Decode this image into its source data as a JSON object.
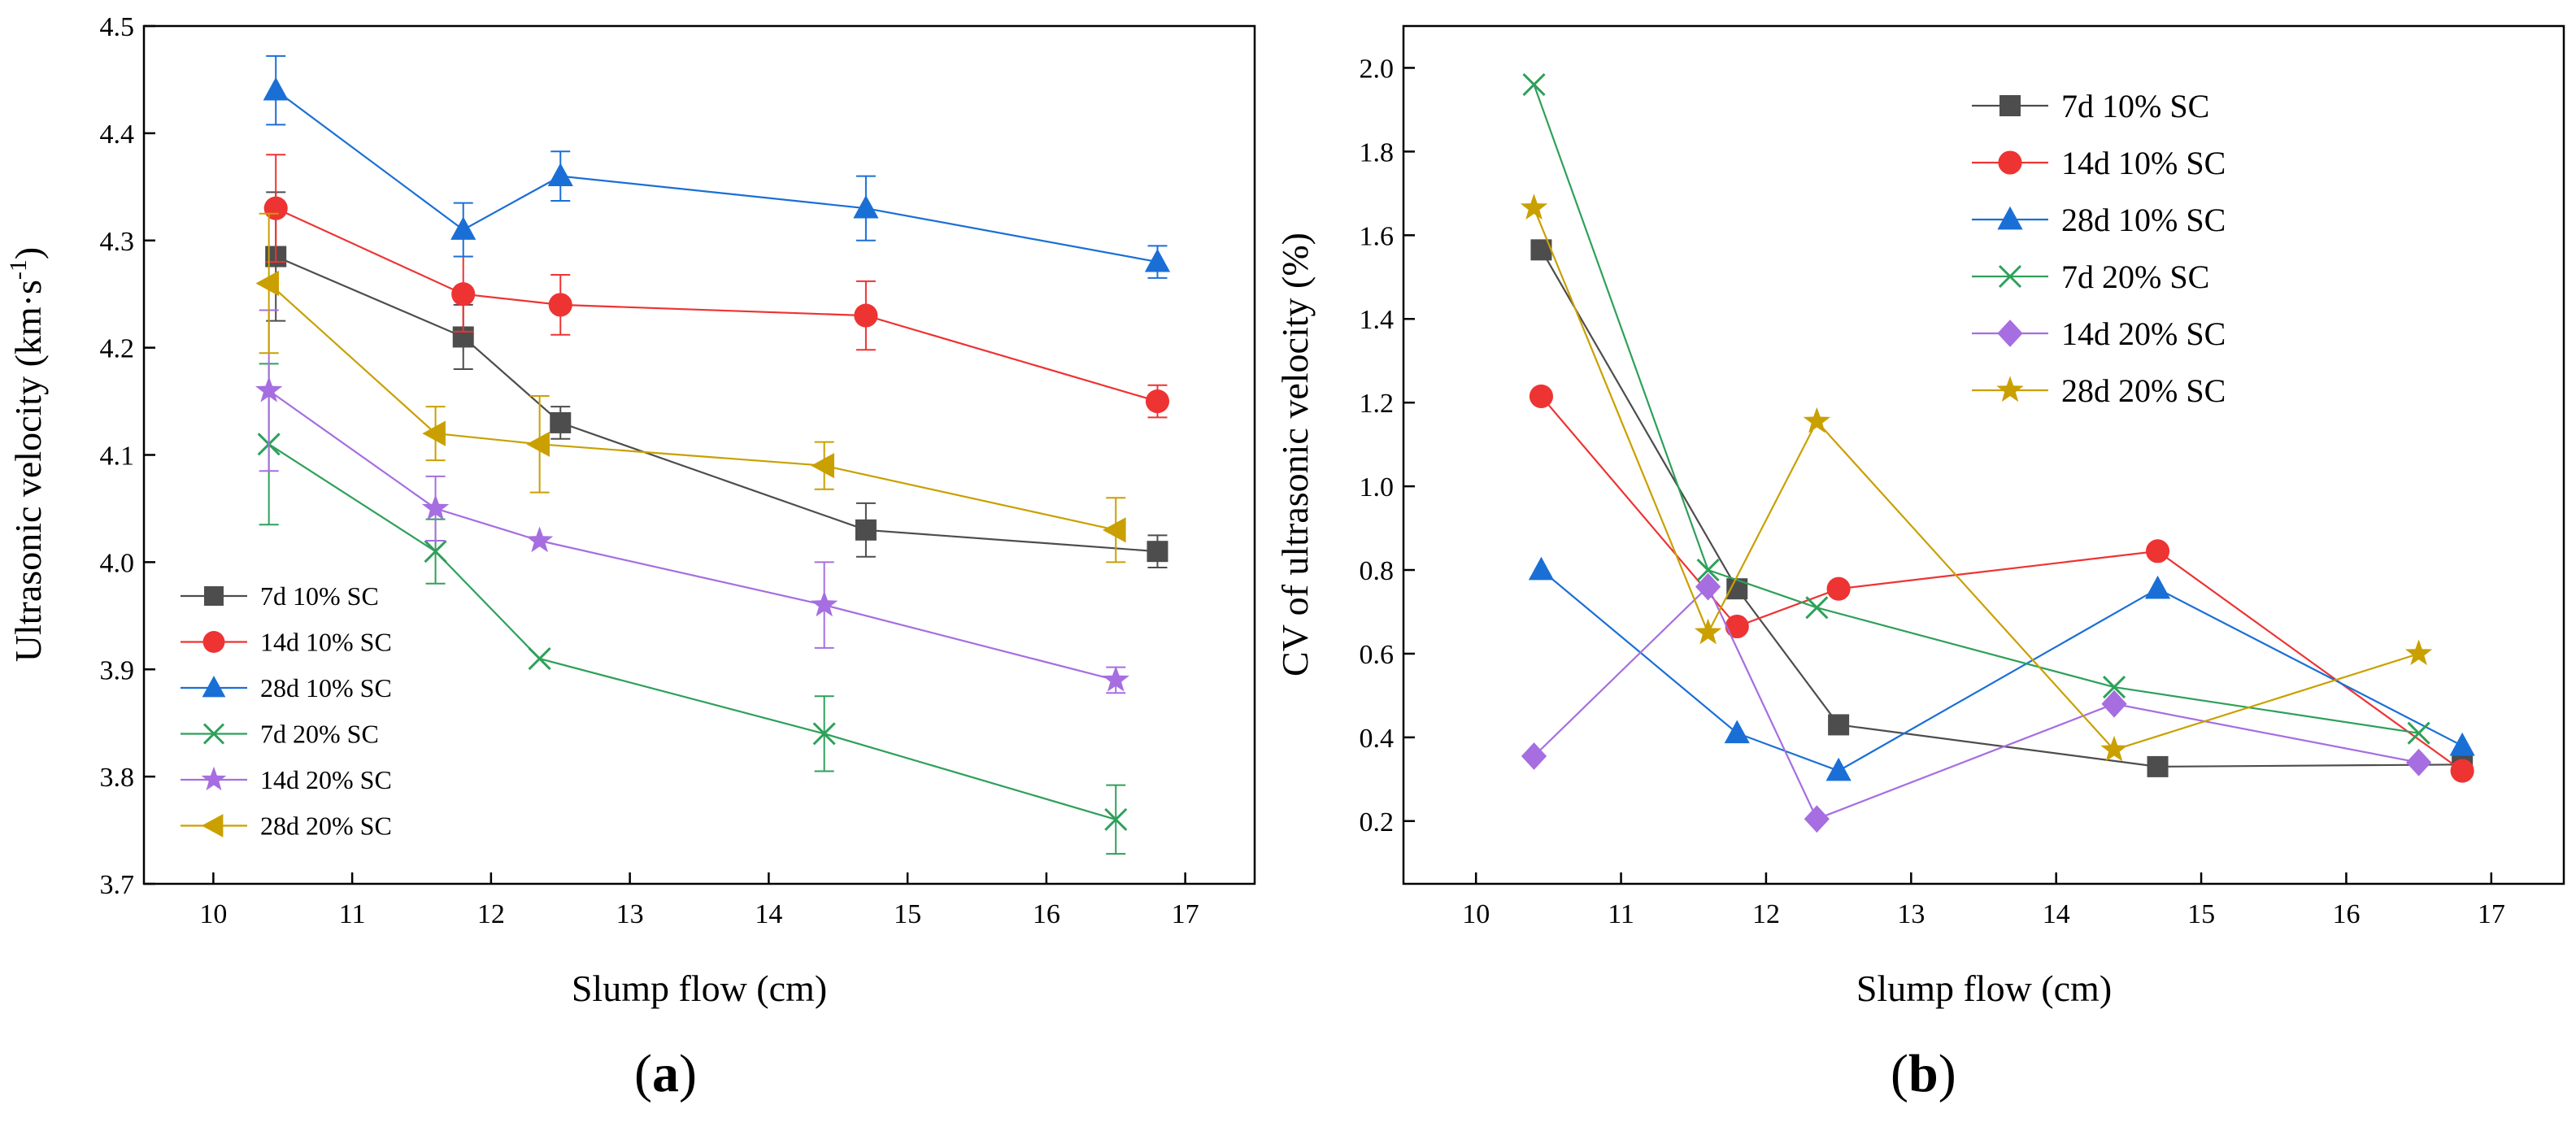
{
  "chart_data": [
    {
      "type": "line",
      "panel_label": "a",
      "xlabel": "Slump flow (cm)",
      "ylabel_main": "Ultrasonic velocity (km·s",
      "ylabel_sup": "-1",
      "ylabel_close": ")",
      "xlim": [
        9.5,
        17.5
      ],
      "ylim": [
        3.7,
        4.5
      ],
      "xticks": [
        10,
        11,
        12,
        13,
        14,
        15,
        16,
        17
      ],
      "yticks": [
        3.7,
        3.8,
        3.9,
        4.0,
        4.1,
        4.2,
        4.3,
        4.4,
        4.5
      ],
      "legend_position": "bottom-left",
      "series": [
        {
          "name": "7d 10% SC",
          "color": "#4d4d4d",
          "marker": "square",
          "x": [
            10.45,
            11.8,
            12.5,
            14.7,
            16.8
          ],
          "y": [
            4.285,
            4.21,
            4.13,
            4.03,
            4.01
          ],
          "err": [
            0.06,
            0.03,
            0.015,
            0.025,
            0.015
          ]
        },
        {
          "name": "14d 10% SC",
          "color": "#ee3333",
          "marker": "circle",
          "x": [
            10.45,
            11.8,
            12.5,
            14.7,
            16.8
          ],
          "y": [
            4.33,
            4.25,
            4.24,
            4.23,
            4.15
          ],
          "err": [
            0.05,
            0.035,
            0.028,
            0.032,
            0.015
          ]
        },
        {
          "name": "28d 10% SC",
          "color": "#1a6fd6",
          "marker": "triangle",
          "x": [
            10.45,
            11.8,
            12.5,
            14.7,
            16.8
          ],
          "y": [
            4.44,
            4.31,
            4.36,
            4.33,
            4.28
          ],
          "err": [
            0.032,
            0.025,
            0.023,
            0.03,
            0.015
          ]
        },
        {
          "name": "7d 20% SC",
          "color": "#2ea05a",
          "marker": "x",
          "x": [
            10.4,
            11.6,
            12.35,
            14.4,
            16.5
          ],
          "y": [
            4.11,
            4.01,
            3.91,
            3.84,
            3.76
          ],
          "err": [
            0.075,
            0.03,
            0.0,
            0.035,
            0.032
          ]
        },
        {
          "name": "14d 20% SC",
          "color": "#a66ee0",
          "marker": "star",
          "x": [
            10.4,
            11.6,
            12.35,
            14.4,
            16.5
          ],
          "y": [
            4.16,
            4.05,
            4.02,
            3.96,
            3.89
          ],
          "err": [
            0.075,
            0.03,
            0.0,
            0.04,
            0.012
          ]
        },
        {
          "name": "28d 20% SC",
          "color": "#c9a000",
          "marker": "triangle-left",
          "x": [
            10.4,
            11.6,
            12.35,
            14.4,
            16.5
          ],
          "y": [
            4.26,
            4.12,
            4.11,
            4.09,
            4.03
          ],
          "err": [
            0.065,
            0.025,
            0.045,
            0.022,
            0.03
          ]
        }
      ]
    },
    {
      "type": "line",
      "panel_label": "b",
      "xlabel": "Slump flow (cm)",
      "ylabel": "CV of ultrasonic velocity (%)",
      "xlim": [
        9.5,
        17.5
      ],
      "ylim": [
        0.05,
        2.1
      ],
      "xticks": [
        10,
        11,
        12,
        13,
        14,
        15,
        16,
        17
      ],
      "yticks": [
        0.2,
        0.4,
        0.6,
        0.8,
        1.0,
        1.2,
        1.4,
        1.6,
        1.8,
        2.0
      ],
      "ytick_labels": [
        "0.2",
        "0.4",
        "0.6",
        "0.8",
        "1.0",
        "1.2",
        "1.4",
        "1.6",
        "1.8",
        "2.0"
      ],
      "legend_position": "top-right",
      "series": [
        {
          "name": "7d 10% SC",
          "color": "#4d4d4d",
          "marker": "square",
          "x": [
            10.45,
            11.8,
            12.5,
            14.7,
            16.8
          ],
          "y": [
            1.565,
            0.755,
            0.43,
            0.33,
            0.335
          ]
        },
        {
          "name": "14d 10% SC",
          "color": "#ee3333",
          "marker": "circle",
          "x": [
            10.45,
            11.8,
            12.5,
            14.7,
            16.8
          ],
          "y": [
            1.215,
            0.665,
            0.755,
            0.845,
            0.32
          ]
        },
        {
          "name": "28d 10% SC",
          "color": "#1a6fd6",
          "marker": "triangle",
          "x": [
            10.45,
            11.8,
            12.5,
            14.7,
            16.8
          ],
          "y": [
            0.8,
            0.41,
            0.32,
            0.755,
            0.38
          ]
        },
        {
          "name": "7d 20% SC",
          "color": "#2ea05a",
          "marker": "x",
          "x": [
            10.4,
            11.6,
            12.35,
            14.4,
            16.5
          ],
          "y": [
            1.96,
            0.8,
            0.71,
            0.52,
            0.41
          ]
        },
        {
          "name": "14d 20% SC",
          "color": "#a66ee0",
          "marker": "diamond",
          "x": [
            10.4,
            11.6,
            12.35,
            14.4,
            16.5
          ],
          "y": [
            0.355,
            0.76,
            0.205,
            0.48,
            0.34
          ]
        },
        {
          "name": "28d 20% SC",
          "color": "#c9a000",
          "marker": "star",
          "x": [
            10.4,
            11.6,
            12.35,
            14.4,
            16.5
          ],
          "y": [
            1.665,
            0.65,
            1.155,
            0.37,
            0.6
          ]
        }
      ]
    }
  ]
}
